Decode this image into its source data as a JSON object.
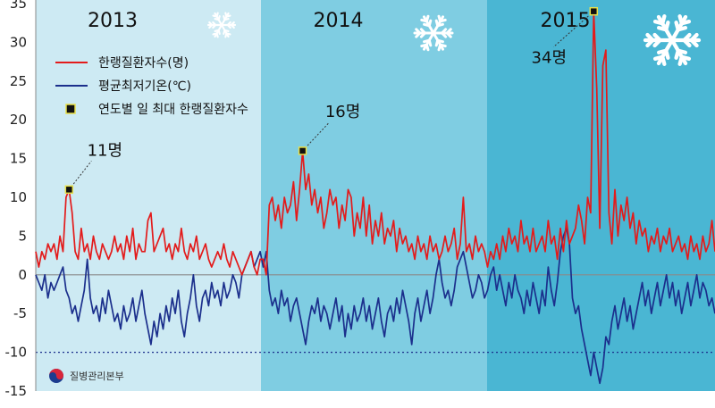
{
  "chart_data": {
    "type": "line",
    "title": "",
    "xlabel": "",
    "ylabel": "",
    "ylim": [
      -15,
      35
    ],
    "yticks": [
      35,
      30,
      25,
      20,
      15,
      10,
      5,
      0,
      -5,
      -10,
      -15
    ],
    "periods": [
      {
        "label": "2013",
        "color": "#cdeaf3"
      },
      {
        "label": "2014",
        "color": "#7fcde2"
      },
      {
        "label": "2015",
        "color": "#4ab6d3"
      }
    ],
    "series": [
      {
        "name": "한랭질환자수(명)",
        "color": "#e31b1b",
        "values": [
          3,
          1,
          3,
          2,
          4,
          3,
          4,
          2,
          5,
          3,
          10,
          11,
          8,
          3,
          2,
          6,
          3,
          4,
          2,
          5,
          3,
          2,
          4,
          3,
          2,
          3,
          5,
          3,
          4,
          2,
          5,
          3,
          6,
          2,
          4,
          3,
          3,
          7,
          8,
          3,
          4,
          5,
          6,
          3,
          4,
          2,
          4,
          3,
          6,
          3,
          2,
          4,
          3,
          5,
          2,
          3,
          4,
          2,
          1,
          2,
          3,
          2,
          4,
          2,
          1,
          3,
          2,
          1,
          0,
          1,
          2,
          3,
          1,
          0,
          2,
          2,
          0,
          9,
          10,
          7,
          9,
          6,
          10,
          8,
          9,
          12,
          7,
          11,
          16,
          11,
          13,
          9,
          11,
          8,
          10,
          6,
          8,
          11,
          9,
          10,
          6,
          9,
          7,
          11,
          10,
          5,
          8,
          6,
          10,
          5,
          9,
          4,
          7,
          5,
          8,
          4,
          6,
          5,
          7,
          3,
          6,
          4,
          5,
          3,
          4,
          2,
          5,
          3,
          4,
          2,
          5,
          3,
          4,
          2,
          3,
          5,
          3,
          4,
          6,
          2,
          4,
          10,
          3,
          4,
          2,
          5,
          3,
          4,
          3,
          1,
          3,
          2,
          4,
          2,
          5,
          3,
          6,
          4,
          5,
          3,
          7,
          4,
          5,
          3,
          6,
          3,
          4,
          5,
          3,
          7,
          4,
          5,
          2,
          6,
          3,
          7,
          4,
          5,
          6,
          9,
          7,
          4,
          10,
          8,
          34,
          24,
          6,
          27,
          29,
          8,
          4,
          11,
          5,
          9,
          7,
          10,
          6,
          8,
          4,
          7,
          5,
          6,
          3,
          5,
          4,
          6,
          3,
          5,
          4,
          6,
          3,
          4,
          5,
          3,
          4,
          2,
          5,
          3,
          4,
          2,
          5,
          3,
          4,
          7,
          3
        ]
      },
      {
        "name": "평균최저기온(℃)",
        "color": "#1b2f8c",
        "values": [
          0,
          -1,
          -2,
          0,
          -3,
          -1,
          -2,
          -1,
          0,
          1,
          -2,
          -3,
          -5,
          -4,
          -6,
          -4,
          -2,
          2,
          -3,
          -5,
          -4,
          -6,
          -3,
          -5,
          -2,
          -4,
          -6,
          -5,
          -7,
          -4,
          -6,
          -5,
          -3,
          -6,
          -4,
          -2,
          -5,
          -7,
          -9,
          -6,
          -8,
          -5,
          -7,
          -4,
          -6,
          -3,
          -5,
          -2,
          -6,
          -8,
          -5,
          -3,
          0,
          -4,
          -6,
          -3,
          -2,
          -4,
          -1,
          -3,
          -2,
          -4,
          -1,
          -3,
          -2,
          0,
          -1,
          -3,
          0,
          1,
          2,
          3,
          1,
          2,
          3,
          1,
          3,
          -2,
          -4,
          -3,
          -5,
          -2,
          -4,
          -3,
          -6,
          -4,
          -3,
          -5,
          -7,
          -9,
          -6,
          -4,
          -5,
          -3,
          -6,
          -4,
          -5,
          -7,
          -5,
          -3,
          -6,
          -4,
          -8,
          -5,
          -7,
          -4,
          -6,
          -5,
          -3,
          -6,
          -4,
          -7,
          -5,
          -3,
          -6,
          -8,
          -5,
          -4,
          -6,
          -3,
          -5,
          -2,
          -4,
          -6,
          -9,
          -5,
          -3,
          -6,
          -4,
          -2,
          -5,
          -3,
          0,
          2,
          -1,
          -3,
          -2,
          -4,
          -2,
          1,
          2,
          3,
          1,
          -1,
          -3,
          -2,
          0,
          -1,
          -3,
          -2,
          0,
          1,
          -2,
          0,
          -2,
          -4,
          -1,
          -3,
          0,
          -2,
          -3,
          -5,
          -2,
          -4,
          -1,
          -3,
          -5,
          -2,
          -4,
          1,
          -2,
          -4,
          -1,
          3,
          5,
          6,
          4,
          -3,
          -5,
          -4,
          -7,
          -9,
          -11,
          -13,
          -10,
          -12,
          -14,
          -12,
          -8,
          -9,
          -6,
          -4,
          -7,
          -5,
          -3,
          -6,
          -4,
          -7,
          -5,
          -3,
          -1,
          -4,
          -2,
          -5,
          -3,
          -1,
          -4,
          -2,
          0,
          -3,
          -1,
          -4,
          -2,
          -5,
          -3,
          -1,
          -4,
          -2,
          0,
          -3,
          -1,
          -2,
          -4,
          -3,
          -5
        ]
      },
      {
        "name": "연도별 일 최대 한랭질환자수",
        "color": "#111111",
        "points": [
          {
            "index": 11,
            "value": 11,
            "label": "11명"
          },
          {
            "index": 88,
            "value": 16,
            "label": "16명"
          },
          {
            "index": 184,
            "value": 34,
            "label": "34명"
          }
        ]
      }
    ],
    "reference_lines": [
      0,
      -10
    ],
    "legend_position": "top-left"
  },
  "source_logo": "질병관리본부",
  "icons": [
    "snowflake-icon"
  ]
}
